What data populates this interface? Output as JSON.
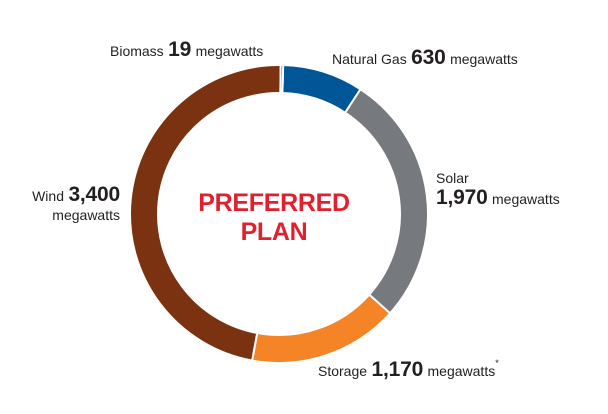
{
  "chart_data": {
    "type": "pie",
    "variant": "donut",
    "center_text": [
      "PREFERRED",
      "PLAN"
    ],
    "center_color": "#e0202f",
    "unit": "megawatts",
    "slices": [
      {
        "name": "Natural Gas",
        "value": 630,
        "value_text": "630",
        "unit": "megawatts",
        "color": "#005696"
      },
      {
        "name": "Solar",
        "value": 1970,
        "value_text": "1,970",
        "unit": "megawatts",
        "color": "#76797e"
      },
      {
        "name": "Storage",
        "value": 1170,
        "value_text": "1,170",
        "unit": "megawatts",
        "note": "*",
        "color": "#f58427"
      },
      {
        "name": "Wind",
        "value": 3400,
        "value_text": "3,400",
        "unit": "megawatts",
        "color": "#7a3210"
      },
      {
        "name": "Biomass",
        "value": 19,
        "value_text": "19",
        "unit": "megawatts",
        "color": "#4a2a10"
      }
    ]
  }
}
